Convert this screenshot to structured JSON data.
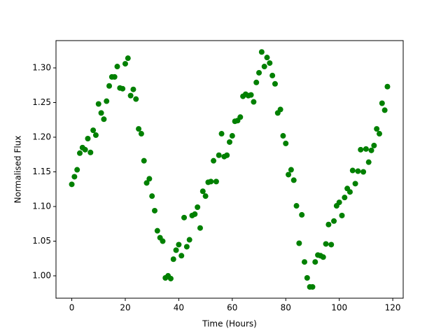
{
  "chart_data": {
    "type": "scatter",
    "x_label": "Time (Hours)",
    "y_label": "Normalised Flux",
    "color": "#008000",
    "x": [
      0,
      1,
      2,
      3,
      4,
      5,
      6,
      7,
      8,
      9,
      10,
      11,
      12,
      13,
      14,
      15,
      16,
      17,
      18,
      19,
      20,
      21,
      22,
      23,
      24,
      25,
      26,
      27,
      28,
      29,
      30,
      31,
      32,
      33,
      34,
      35,
      36,
      37,
      38,
      39,
      40,
      41,
      42,
      43,
      44,
      45,
      46,
      47,
      48,
      49,
      50,
      51,
      52,
      53,
      54,
      55,
      56,
      57,
      58,
      59,
      60,
      61,
      62,
      63,
      64,
      65,
      66,
      67,
      68,
      69,
      70,
      71,
      72,
      73,
      74,
      75,
      76,
      77,
      78,
      79,
      80,
      81,
      82,
      83,
      84,
      85,
      86,
      87,
      88,
      89,
      90,
      91,
      92,
      93,
      94,
      95,
      96,
      97,
      98,
      99,
      100,
      101,
      102,
      103,
      104,
      105,
      106,
      107,
      108,
      109,
      110,
      111,
      112,
      113,
      114,
      115,
      116,
      117,
      118
    ],
    "values": [
      1.132,
      1.143,
      1.153,
      1.177,
      1.185,
      1.182,
      1.198,
      1.178,
      1.21,
      1.203,
      1.248,
      1.235,
      1.226,
      1.252,
      1.274,
      1.287,
      1.287,
      1.302,
      1.271,
      1.27,
      1.306,
      1.314,
      1.26,
      1.269,
      1.255,
      1.212,
      1.205,
      1.166,
      1.134,
      1.14,
      1.115,
      1.094,
      1.065,
      1.055,
      1.05,
      0.997,
      1.0,
      0.996,
      1.024,
      1.037,
      1.045,
      1.029,
      1.084,
      1.042,
      1.052,
      1.087,
      1.089,
      1.099,
      1.069,
      1.122,
      1.115,
      1.135,
      1.136,
      1.166,
      1.136,
      1.174,
      1.205,
      1.172,
      1.174,
      1.193,
      1.202,
      1.223,
      1.224,
      1.229,
      1.259,
      1.262,
      1.26,
      1.261,
      1.251,
      1.279,
      1.293,
      1.323,
      1.302,
      1.315,
      1.307,
      1.289,
      1.277,
      1.235,
      1.24,
      1.202,
      1.191,
      1.146,
      1.153,
      1.138,
      1.101,
      1.047,
      1.088,
      1.02,
      0.997,
      0.984,
      0.984,
      1.02,
      1.03,
      1.029,
      1.027,
      1.046,
      1.074,
      1.045,
      1.079,
      1.101,
      1.106,
      1.087,
      1.113,
      1.126,
      1.121,
      1.152,
      1.133,
      1.151,
      1.182,
      1.15,
      1.183,
      1.164,
      1.181,
      1.188,
      1.212,
      1.205,
      1.249,
      1.239,
      1.273
    ],
    "xlim": [
      -5.9,
      123.9
    ],
    "xticks": [
      0,
      20,
      40,
      60,
      80,
      100,
      120
    ],
    "ylim": [
      0.9677,
      1.3394
    ],
    "yticks": [
      {
        "value": 1,
        "label": "1.00"
      },
      1.05,
      {
        "value": 1.1,
        "label": "1.10"
      },
      1.15,
      {
        "value": 1.2,
        "label": "1.20"
      },
      1.25,
      {
        "value": 1.3,
        "label": "1.30"
      }
    ]
  }
}
